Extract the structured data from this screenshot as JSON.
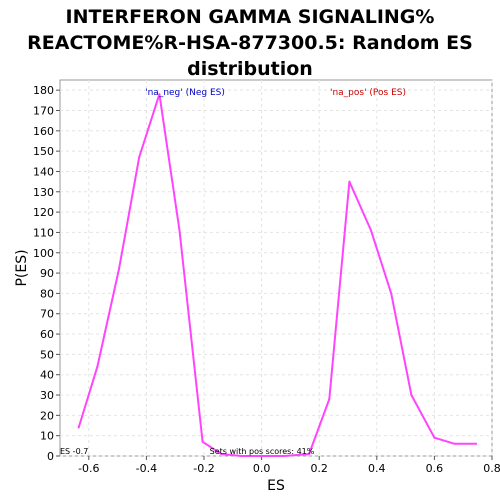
{
  "chart_data": {
    "type": "line",
    "title_lines": [
      "INTERFERON GAMMA SIGNALING%",
      "REACTOME%R-HSA-877300.5: Random ES",
      "distribution"
    ],
    "xlabel": "ES",
    "ylabel": "P(ES)",
    "xlim": [
      -0.7,
      0.8
    ],
    "ylim": [
      0,
      185
    ],
    "xticks": [
      "-0.6",
      "-0.4",
      "-0.2",
      "0.0",
      "0.2",
      "0.4",
      "0.6",
      "0.8"
    ],
    "yticks": [
      "0",
      "10",
      "20",
      "30",
      "40",
      "50",
      "60",
      "70",
      "80",
      "90",
      "100",
      "110",
      "120",
      "130",
      "140",
      "150",
      "160",
      "170",
      "180"
    ],
    "grid": true,
    "series": [
      {
        "color": "#ff44ff",
        "points": [
          [
            -0.635,
            14
          ],
          [
            -0.57,
            44
          ],
          [
            -0.495,
            92
          ],
          [
            -0.425,
            147
          ],
          [
            -0.355,
            178
          ],
          [
            -0.285,
            111
          ],
          [
            -0.205,
            7
          ],
          [
            -0.14,
            1
          ],
          [
            -0.07,
            0
          ],
          [
            0.0,
            0
          ],
          [
            0.08,
            0
          ],
          [
            0.165,
            1
          ],
          [
            0.235,
            28
          ],
          [
            0.305,
            135
          ],
          [
            0.38,
            111
          ],
          [
            0.45,
            80
          ],
          [
            0.52,
            30
          ],
          [
            0.6,
            9
          ],
          [
            0.67,
            6
          ],
          [
            0.745,
            6
          ]
        ]
      }
    ],
    "annotations": {
      "neg_label": "'na_neg' (Neg ES)",
      "pos_label": "'na_pos' (Pos ES)",
      "es_marker": "ES -0.7",
      "pos_scores": "Sets with pos scores: 41%"
    },
    "colors": {
      "neg_label": "#0000cc",
      "pos_label": "#cc0000",
      "line": "#ff44ff"
    }
  }
}
